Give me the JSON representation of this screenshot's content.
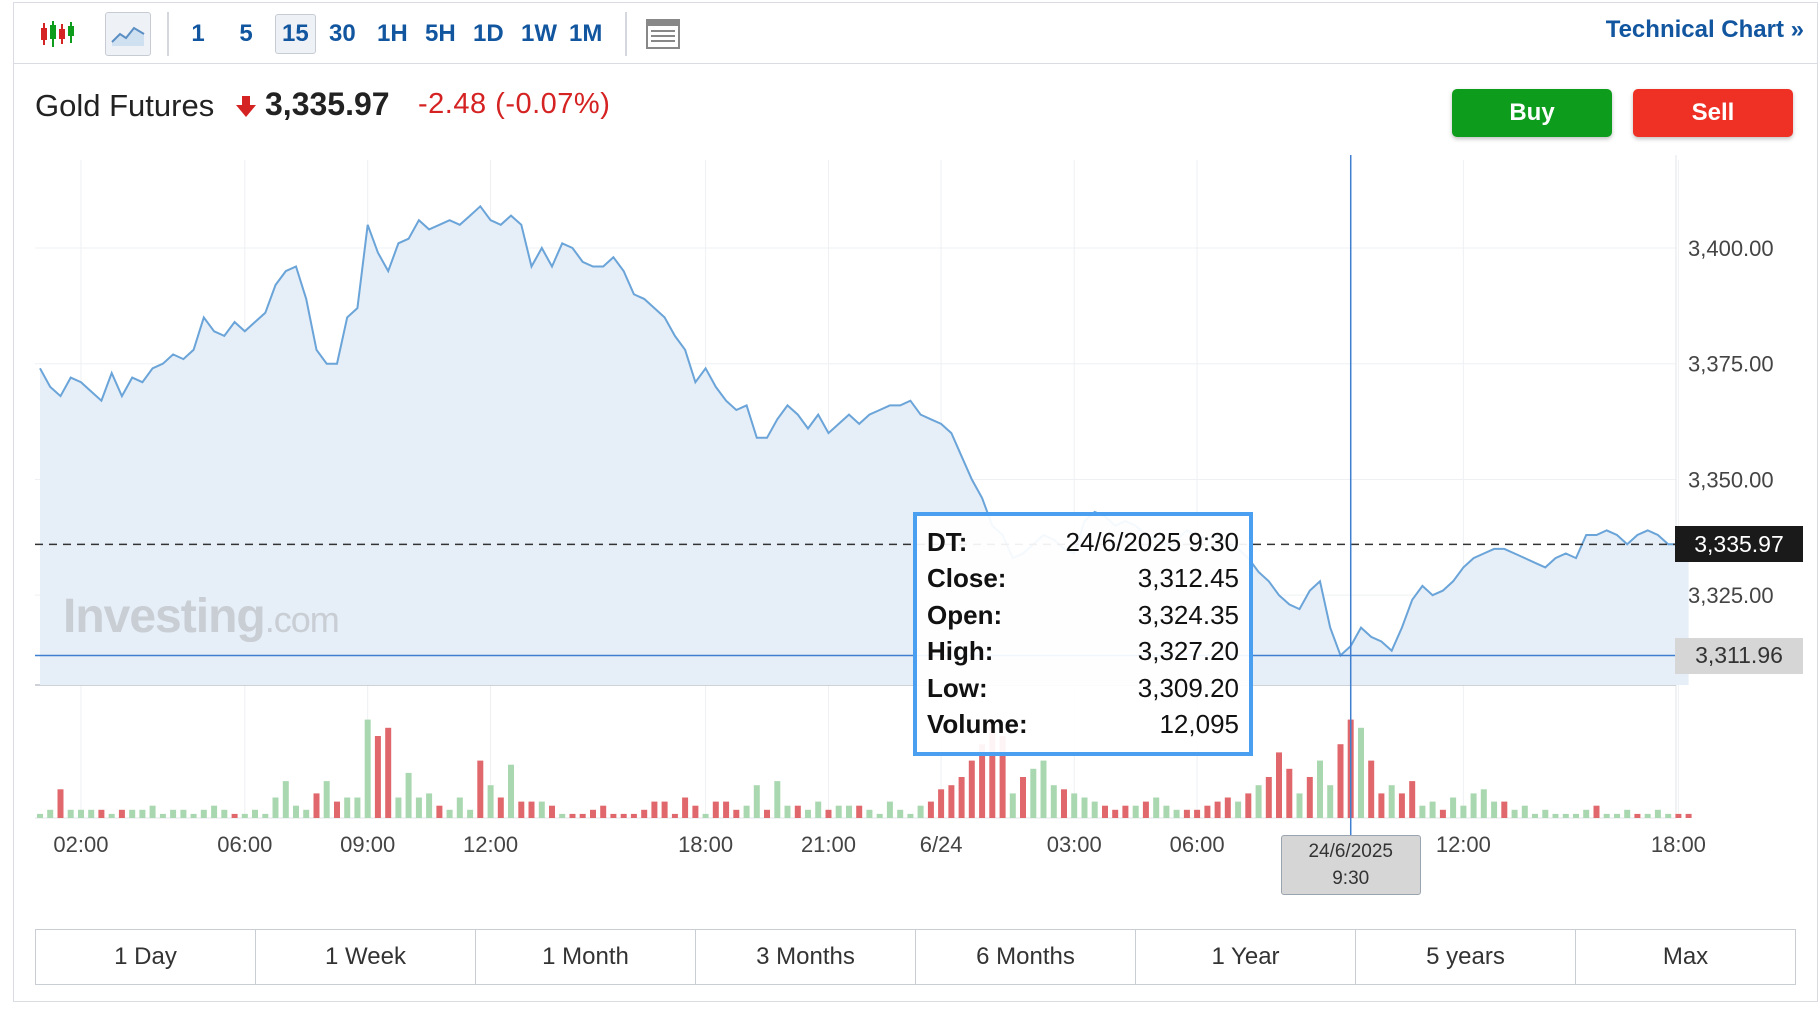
{
  "toolbar": {
    "chart_type_icons": [
      "candlestick-icon",
      "area-chart-icon",
      "layout-icon"
    ],
    "intervals": [
      "1",
      "5",
      "15",
      "30",
      "1H",
      "5H",
      "1D",
      "1W",
      "1M"
    ],
    "active_interval": "15",
    "technical_chart_label": "Technical Chart",
    "technical_chart_arrow": "»"
  },
  "header": {
    "instrument": "Gold Futures",
    "price": "3,335.97",
    "change": "-2.48",
    "change_pct": "(-0.07%)",
    "direction_icon": "down-arrow-icon",
    "buy_label": "Buy",
    "sell_label": "Sell",
    "colors": {
      "buy": "#0e9c1c",
      "sell": "#ee3124",
      "down": "#d52222"
    }
  },
  "tooltip": {
    "rows": [
      {
        "key": "DT:",
        "value": "24/6/2025 9:30"
      },
      {
        "key": "Close:",
        "value": "3,312.45"
      },
      {
        "key": "Open:",
        "value": "3,324.35"
      },
      {
        "key": "High:",
        "value": "3,327.20"
      },
      {
        "key": "Low:",
        "value": "3,309.20"
      },
      {
        "key": "Volume:",
        "value": "12,095"
      }
    ]
  },
  "last_price_tag": "3,335.97",
  "crosshair_price_tag": "3,311.96",
  "crosshair_date_tag": {
    "line1": "24/6/2025",
    "line2": "9:30"
  },
  "watermark": {
    "main": "Investing",
    "suffix": ".com"
  },
  "ranges": [
    "1 Day",
    "1 Week",
    "1 Month",
    "3 Months",
    "6 Months",
    "1 Year",
    "5 years",
    "Max"
  ],
  "chart_data": {
    "type": "area",
    "y_ticks": [
      "3,400.00",
      "3,375.00",
      "3,350.00",
      "3,325.00"
    ],
    "y_tick_values": [
      3400,
      3375,
      3350,
      3325
    ],
    "ylim": [
      3305.6,
      3419
    ],
    "x_ticks": [
      "02:00",
      "06:00",
      "09:00",
      "12:00",
      "18:00",
      "21:00",
      "6/24",
      "03:00",
      "06:00",
      "12:00",
      "18:00"
    ],
    "x_tick_index": [
      4,
      20,
      32,
      44,
      65,
      77,
      88,
      101,
      113,
      139,
      160
    ],
    "last_price": 3335.97,
    "crosshair_price": 3311.96,
    "crosshair_index": 128,
    "grid": true,
    "colors": {
      "line": "#6aa4d8",
      "fill": "#e6eef7",
      "vol_up": "#a9d8b0",
      "vol_down": "#e0686c"
    },
    "series": [
      {
        "type": "area",
        "values": [
          3374,
          3370,
          3368,
          3372,
          3371,
          3369,
          3367,
          3373,
          3368,
          3372,
          3371,
          3374,
          3375,
          3377,
          3376,
          3378,
          3385,
          3382,
          3381,
          3384,
          3382,
          3384,
          3386,
          3392,
          3395,
          3396,
          3389,
          3378,
          3375,
          3375,
          3385,
          3387,
          3405,
          3399,
          3395,
          3401,
          3402,
          3406,
          3404,
          3405,
          3406,
          3405,
          3407,
          3409,
          3406,
          3405,
          3407,
          3405,
          3396,
          3400,
          3396,
          3401,
          3400,
          3397,
          3396,
          3396,
          3398,
          3395,
          3390,
          3389,
          3387,
          3385,
          3381,
          3378,
          3371,
          3374,
          3370,
          3367,
          3365,
          3366,
          3359,
          3359,
          3363,
          3366,
          3364,
          3361,
          3364,
          3360,
          3362,
          3364,
          3362,
          3364,
          3365,
          3366,
          3366,
          3367,
          3364,
          3363,
          3362,
          3360,
          3355,
          3350,
          3346,
          3340,
          3338,
          3333,
          3334,
          3336,
          3338,
          3337,
          3335,
          3334,
          3341,
          3343,
          3342,
          3340,
          3341,
          3340,
          3338,
          3337,
          3336,
          3337,
          3339,
          3338,
          3337,
          3338,
          3336,
          3335,
          3333,
          3330,
          3328,
          3325,
          3323,
          3322,
          3326,
          3328,
          3318,
          3312,
          3314,
          3318,
          3316,
          3315,
          3313,
          3318,
          3324,
          3327,
          3325,
          3326,
          3328,
          3331,
          3333,
          3334,
          3335,
          3335,
          3334,
          3333,
          3332,
          3331,
          3333,
          3334,
          3333,
          3338,
          3338,
          3339,
          3338,
          3336,
          3338,
          3339,
          3338,
          3336,
          3336,
          3336
        ]
      },
      {
        "type": "volume",
        "values": [
          1,
          2,
          7,
          2,
          2,
          2,
          2,
          1,
          2,
          2,
          2,
          3,
          1,
          2,
          2,
          1,
          2,
          3,
          2,
          1,
          1,
          2,
          1,
          5,
          9,
          3,
          2,
          6,
          9,
          4,
          5,
          5,
          24,
          20,
          22,
          5,
          11,
          5,
          6,
          3,
          2,
          5,
          2,
          14,
          8,
          5,
          13,
          4,
          4,
          4,
          3,
          1,
          1,
          1,
          2,
          3,
          1,
          1,
          1,
          2,
          4,
          4,
          1,
          5,
          3,
          1,
          4,
          4,
          2,
          3,
          8,
          2,
          9,
          3,
          3,
          2,
          4,
          2,
          3,
          3,
          3,
          2,
          1,
          4,
          2,
          1,
          3,
          4,
          7,
          8,
          10,
          14,
          18,
          24,
          20,
          6,
          10,
          12,
          14,
          8,
          7,
          6,
          5,
          4,
          3,
          2,
          3,
          3,
          4,
          5,
          3,
          2,
          2,
          2,
          3,
          4,
          5,
          4,
          6,
          8,
          10,
          16,
          12,
          6,
          10,
          14,
          8,
          18,
          24,
          22,
          14,
          6,
          8,
          6,
          9,
          3,
          4,
          2,
          5,
          3,
          6,
          7,
          4,
          4,
          2,
          3,
          1,
          2,
          1,
          1,
          1,
          2,
          3,
          1,
          1,
          2,
          1,
          1,
          2,
          1,
          1,
          1
        ],
        "directions": [
          1,
          1,
          -1,
          1,
          1,
          1,
          -1,
          1,
          -1,
          1,
          1,
          1,
          1,
          1,
          1,
          1,
          1,
          1,
          1,
          -1,
          1,
          1,
          1,
          1,
          1,
          1,
          1,
          -1,
          1,
          -1,
          1,
          1,
          1,
          -1,
          -1,
          1,
          1,
          1,
          1,
          -1,
          1,
          1,
          1,
          -1,
          1,
          -1,
          1,
          -1,
          -1,
          1,
          -1,
          1,
          -1,
          -1,
          -1,
          -1,
          -1,
          -1,
          -1,
          -1,
          -1,
          -1,
          -1,
          -1,
          -1,
          1,
          -1,
          -1,
          -1,
          1,
          1,
          -1,
          1,
          1,
          -1,
          1,
          1,
          -1,
          1,
          1,
          -1,
          1,
          1,
          1,
          1,
          1,
          1,
          -1,
          -1,
          -1,
          -1,
          -1,
          -1,
          -1,
          -1,
          1,
          -1,
          1,
          1,
          1,
          -1,
          1,
          1,
          1,
          -1,
          -1,
          -1,
          1,
          -1,
          1,
          1,
          1,
          -1,
          -1,
          -1,
          -1,
          -1,
          1,
          -1,
          1,
          -1,
          -1,
          -1,
          1,
          -1,
          1,
          1,
          -1,
          -1,
          1,
          -1,
          -1,
          1,
          -1,
          -1,
          1,
          1,
          -1,
          1,
          1,
          1,
          1,
          1,
          -1,
          1,
          1,
          1,
          1,
          1,
          1,
          1,
          1,
          -1,
          1,
          1,
          1,
          -1,
          1,
          1,
          1,
          -1,
          -1,
          -1,
          1,
          1,
          1,
          1
        ]
      }
    ]
  }
}
